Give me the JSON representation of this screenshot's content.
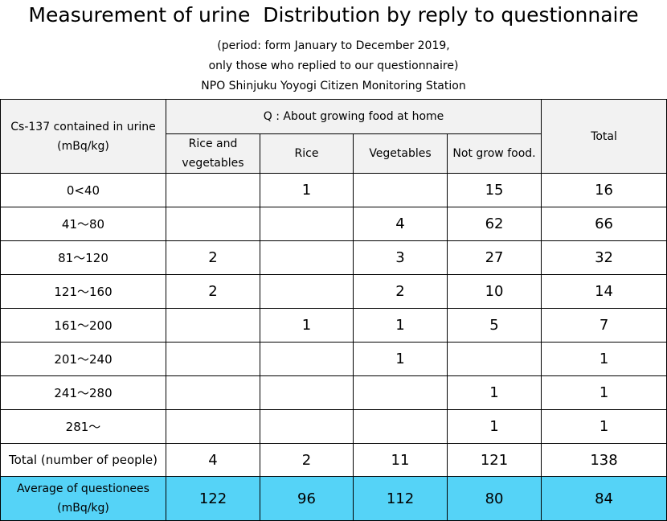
{
  "title": "Measurement of urine  Distribution by reply to questionnaire",
  "period_line1": "(period: form January to December 2019,",
  "period_line2": "only those who replied to our questionnaire)",
  "organization": "NPO Shinjuku Yoyogi Citizen Monitoring Station",
  "table": {
    "row_header": "Cs-137 contained in urine\n(mBq/kg)",
    "group_header": "Q : About growing food at home",
    "total_header": "Total",
    "columns": [
      "Rice and\nvegetables",
      "Rice",
      "Vegetables",
      "Not grow food."
    ],
    "rows": [
      {
        "range": "0<40",
        "cells": [
          "",
          "1",
          "",
          "15"
        ],
        "total": "16"
      },
      {
        "range": "41～80",
        "cells": [
          "",
          "",
          "4",
          "62"
        ],
        "total": "66"
      },
      {
        "range": "81～120",
        "cells": [
          "2",
          "",
          "3",
          "27"
        ],
        "total": "32"
      },
      {
        "range": "121～160",
        "cells": [
          "2",
          "",
          "2",
          "10"
        ],
        "total": "14"
      },
      {
        "range": "161～200",
        "cells": [
          "",
          "1",
          "1",
          "5"
        ],
        "total": "7"
      },
      {
        "range": "201～240",
        "cells": [
          "",
          "",
          "1",
          ""
        ],
        "total": "1"
      },
      {
        "range": "241～280",
        "cells": [
          "",
          "",
          "",
          "1"
        ],
        "total": "1"
      },
      {
        "range": "281～",
        "cells": [
          "",
          "",
          "",
          "1"
        ],
        "total": "1"
      }
    ],
    "total_row": {
      "label": "Total (number of people)",
      "cells": [
        "4",
        "2",
        "11",
        "121"
      ],
      "total": "138"
    },
    "average_row": {
      "label": "Average of questionees\n(mBq/kg)",
      "cells": [
        "122",
        "96",
        "112",
        "80"
      ],
      "total": "84"
    },
    "average_row_color": "#55d3f7",
    "header_background": "#f2f2f2"
  }
}
